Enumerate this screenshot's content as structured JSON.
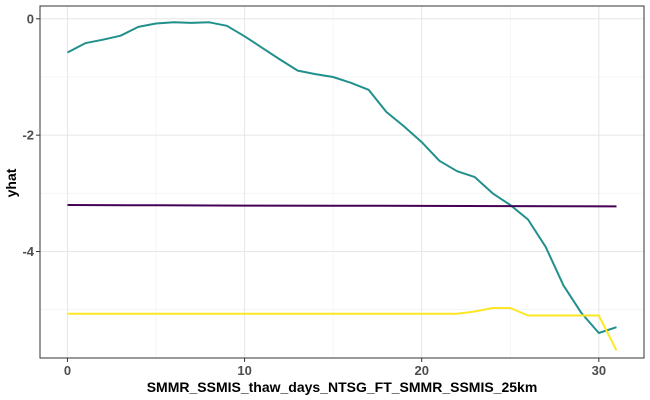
{
  "chart_data": {
    "type": "line",
    "xlabel": "SMMR_SSMIS_thaw_days_NTSG_FT_SMMR_SSMIS_25km",
    "ylabel": "yhat",
    "xlim": [
      -1.55,
      32.55
    ],
    "ylim": [
      -5.83,
      0.22
    ],
    "x_ticks": [
      0,
      10,
      20,
      30
    ],
    "y_ticks": [
      0,
      -2,
      -4
    ],
    "y_tick_labels": [
      "0",
      "-2",
      "-4"
    ],
    "grid": true,
    "legend": "none",
    "series": [
      {
        "color": "#21908C",
        "x": [
          0,
          1,
          2,
          3,
          4,
          5,
          6,
          7,
          8,
          9,
          10,
          11,
          12,
          13,
          14,
          15,
          16,
          17,
          18,
          19,
          20,
          21,
          22,
          23,
          24,
          25,
          26,
          27,
          28,
          29,
          30,
          31
        ],
        "y": [
          -0.58,
          -0.42,
          -0.36,
          -0.29,
          -0.14,
          -0.08,
          -0.06,
          -0.07,
          -0.06,
          -0.12,
          -0.3,
          -0.5,
          -0.7,
          -0.89,
          -0.95,
          -1.0,
          -1.1,
          -1.22,
          -1.6,
          -1.85,
          -2.12,
          -2.44,
          -2.62,
          -2.72,
          -3.0,
          -3.2,
          -3.45,
          -3.92,
          -4.58,
          -5.05,
          -5.4,
          -5.3
        ]
      },
      {
        "color": "#440154",
        "x": [
          0,
          5,
          10,
          15,
          20,
          25,
          31
        ],
        "y": [
          -3.2,
          -3.205,
          -3.21,
          -3.212,
          -3.215,
          -3.22,
          -3.225
        ]
      },
      {
        "color": "#FDE725",
        "x": [
          0,
          5,
          10,
          15,
          20,
          21,
          22,
          23,
          24,
          25,
          26,
          27,
          28,
          29,
          30,
          31
        ],
        "y": [
          -5.07,
          -5.07,
          -5.07,
          -5.07,
          -5.07,
          -5.07,
          -5.07,
          -5.03,
          -4.97,
          -4.97,
          -5.1,
          -5.1,
          -5.1,
          -5.1,
          -5.1,
          -5.7
        ]
      }
    ]
  }
}
